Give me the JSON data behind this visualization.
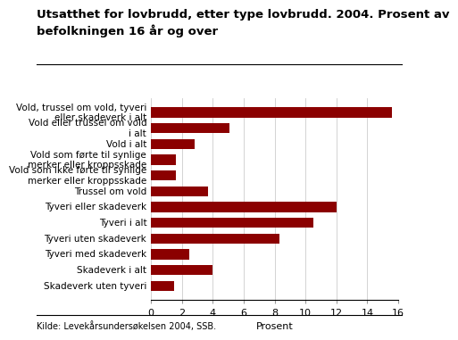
{
  "title_line1": "Utsatthet for lovbrudd, etter type lovbrudd. 2004. Prosent av",
  "title_line2": "befolkningen 16 år og over",
  "categories": [
    "Skadeverk uten tyveri",
    "Skadeverk i alt",
    "Tyveri med skadeverk",
    "Tyveri uten skadeverk",
    "Tyveri i alt",
    "Tyveri eller skadeverk",
    "Trussel om vold",
    "Vold som ikke førte til synlige\nmerker eller kroppsskade",
    "Vold som førte til synlige\nmerker eller kroppsskade",
    "Vold i alt",
    "Vold eller trussel om vold\ni alt",
    "Vold, trussel om vold, tyveri\neller skadeverk i alt"
  ],
  "values": [
    1.5,
    4.0,
    2.5,
    8.3,
    10.5,
    12.0,
    3.7,
    1.6,
    1.6,
    2.8,
    5.1,
    15.6
  ],
  "bar_color": "#8B0000",
  "xlabel": "Prosent",
  "footnote": "Kilde: Levekårsundersøkelsen 2004, SSB.",
  "xlim": [
    0,
    16
  ],
  "xticks": [
    0,
    2,
    4,
    6,
    8,
    10,
    12,
    14,
    16
  ],
  "title_fontsize": 9.5,
  "label_fontsize": 7.5,
  "tick_fontsize": 8,
  "footnote_fontsize": 7
}
